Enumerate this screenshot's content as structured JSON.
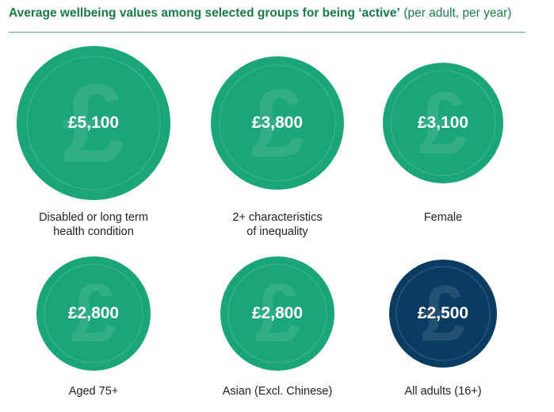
{
  "header": {
    "title": "Average wellbeing values among selected groups for being ‘active’",
    "subtitle": "(per adult, per year)"
  },
  "colors": {
    "green": "#1aa57a",
    "navy": "#0a3c62"
  },
  "icon": {
    "name": "pound-sign-icon",
    "glyph": "£"
  },
  "chart_data": {
    "type": "bubble-grid",
    "items": [
      {
        "label_lines": [
          "Disabled or long term",
          "health condition"
        ],
        "value": 5100,
        "display": "£5,100",
        "color": "#1aa57a"
      },
      {
        "label_lines": [
          "2+ characteristics",
          "of inequality"
        ],
        "value": 3800,
        "display": "£3,800",
        "color": "#1aa57a"
      },
      {
        "label_lines": [
          "Female"
        ],
        "value": 3100,
        "display": "£3,100",
        "color": "#1aa57a"
      },
      {
        "label_lines": [
          "Aged 75+"
        ],
        "value": 2800,
        "display": "£2,800",
        "color": "#1aa57a"
      },
      {
        "label_lines": [
          "Asian (Excl. Chinese)"
        ],
        "value": 2800,
        "display": "£2,800",
        "color": "#1aa57a"
      },
      {
        "label_lines": [
          "All adults (16+)"
        ],
        "value": 2500,
        "display": "£2,500",
        "color": "#0a3c62"
      }
    ]
  }
}
